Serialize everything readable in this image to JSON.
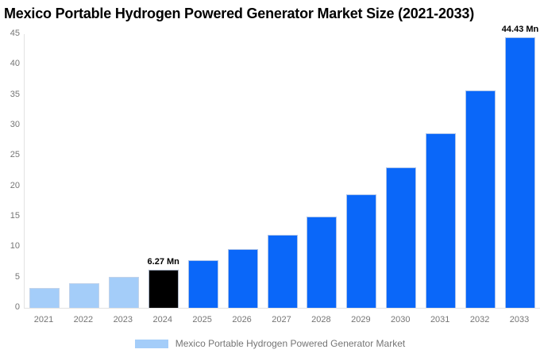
{
  "title": "Mexico Portable Hydrogen Powered Generator Market Size (2021-2033)",
  "legend": {
    "label": "Mexico Portable Hydrogen Powered Generator Market",
    "swatch_color": "#a4cdf9"
  },
  "colors": {
    "historical_bar": "#a4cdf9",
    "base_year_bar": "#000000",
    "forecast_bar": "#0a67f9",
    "axis_text": "#757575",
    "axis_line": "#e2e2e2",
    "annotation_text": "#000000",
    "background": "#ffffff"
  },
  "chart_data": {
    "type": "bar",
    "title": "Mexico Portable Hydrogen Powered Generator Market Size (2021-2033)",
    "xlabel": "",
    "ylabel": "",
    "unit": "Mn",
    "categories": [
      "2021",
      "2022",
      "2023",
      "2024",
      "2025",
      "2026",
      "2027",
      "2028",
      "2029",
      "2030",
      "2031",
      "2032",
      "2033"
    ],
    "values": [
      3.26,
      4.06,
      5.04,
      6.27,
      7.79,
      9.69,
      12.04,
      14.97,
      18.61,
      23.13,
      28.76,
      35.75,
      44.43
    ],
    "bar_colors": [
      "#a4cdf9",
      "#a4cdf9",
      "#a4cdf9",
      "#000000",
      "#0a67f9",
      "#0a67f9",
      "#0a67f9",
      "#0a67f9",
      "#0a67f9",
      "#0a67f9",
      "#0a67f9",
      "#0a67f9",
      "#0a67f9"
    ],
    "ylim": [
      0,
      45
    ],
    "yticks": [
      0,
      5,
      10,
      15,
      20,
      25,
      30,
      35,
      40,
      45
    ],
    "grid": false,
    "legend_position": "bottom",
    "annotations": [
      {
        "category": "2024",
        "text": "6.27 Mn"
      },
      {
        "category": "2033",
        "text": "44.43 Mn"
      }
    ]
  }
}
